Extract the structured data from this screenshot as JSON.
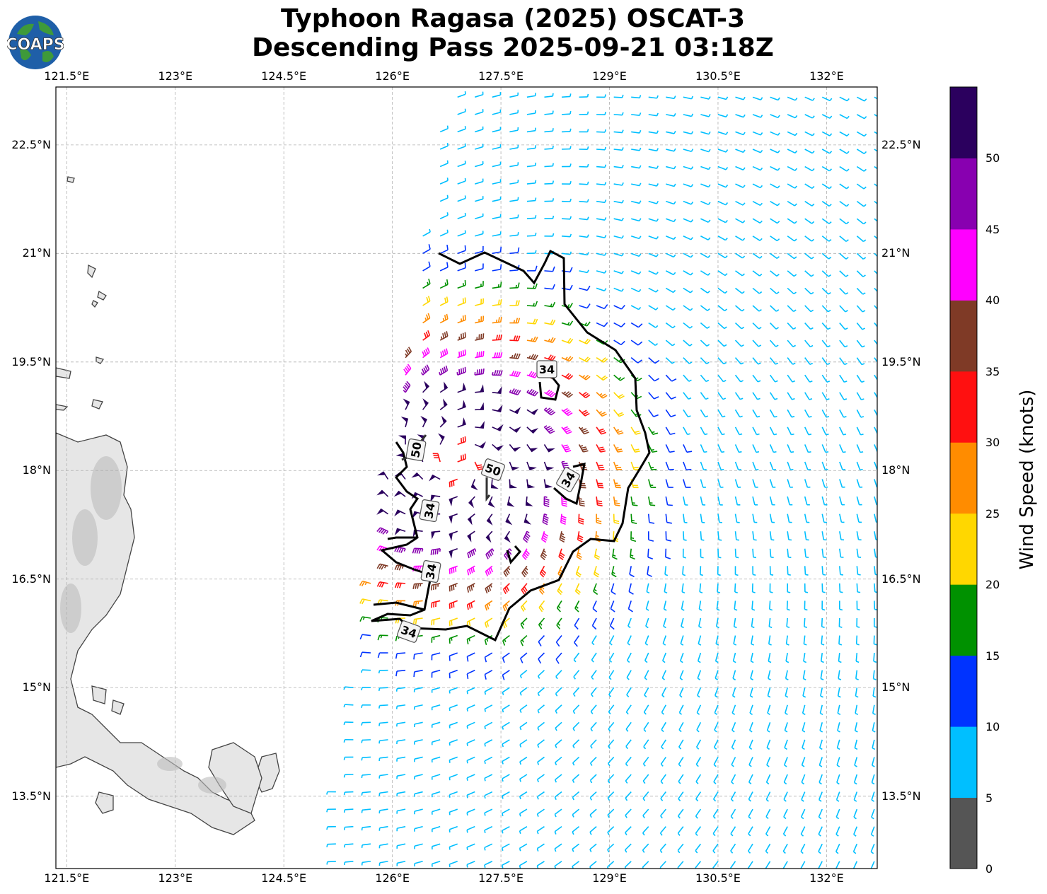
{
  "title": {
    "line1": "Typhoon Ragasa (2025) OSCAT-3",
    "line2": "Descending Pass 2025-09-21 03:18Z"
  },
  "logo": {
    "text": "COAPS"
  },
  "map": {
    "lon_ticks": [
      "121.5°E",
      "123°E",
      "124.5°E",
      "126°E",
      "127.5°E",
      "129°E",
      "130.5°E",
      "132°E"
    ],
    "lat_ticks": [
      "22.5°N",
      "21°N",
      "19.5°N",
      "18°N",
      "16.5°N",
      "15°N",
      "13.5°N"
    ],
    "contour_labels": [
      "50",
      "50",
      "34",
      "34",
      "34",
      "34",
      "34"
    ],
    "center": {
      "lon": 126.9,
      "lat": 18.1
    }
  },
  "colorbar": {
    "label": "Wind Speed (knots)",
    "ticks": [
      "0",
      "5",
      "10",
      "15",
      "20",
      "25",
      "30",
      "35",
      "40",
      "45",
      "50"
    ],
    "colors": [
      "#555555",
      "#00bfff",
      "#0033ff",
      "#009100",
      "#ffd700",
      "#ff8c00",
      "#ff1010",
      "#7f3a26",
      "#ff00ff",
      "#8800b0",
      "#2b005e"
    ]
  },
  "colors": {
    "land": "#e6e6e6",
    "coast": "#444444",
    "contour": "#000000",
    "grid": "#b0b0b0"
  }
}
